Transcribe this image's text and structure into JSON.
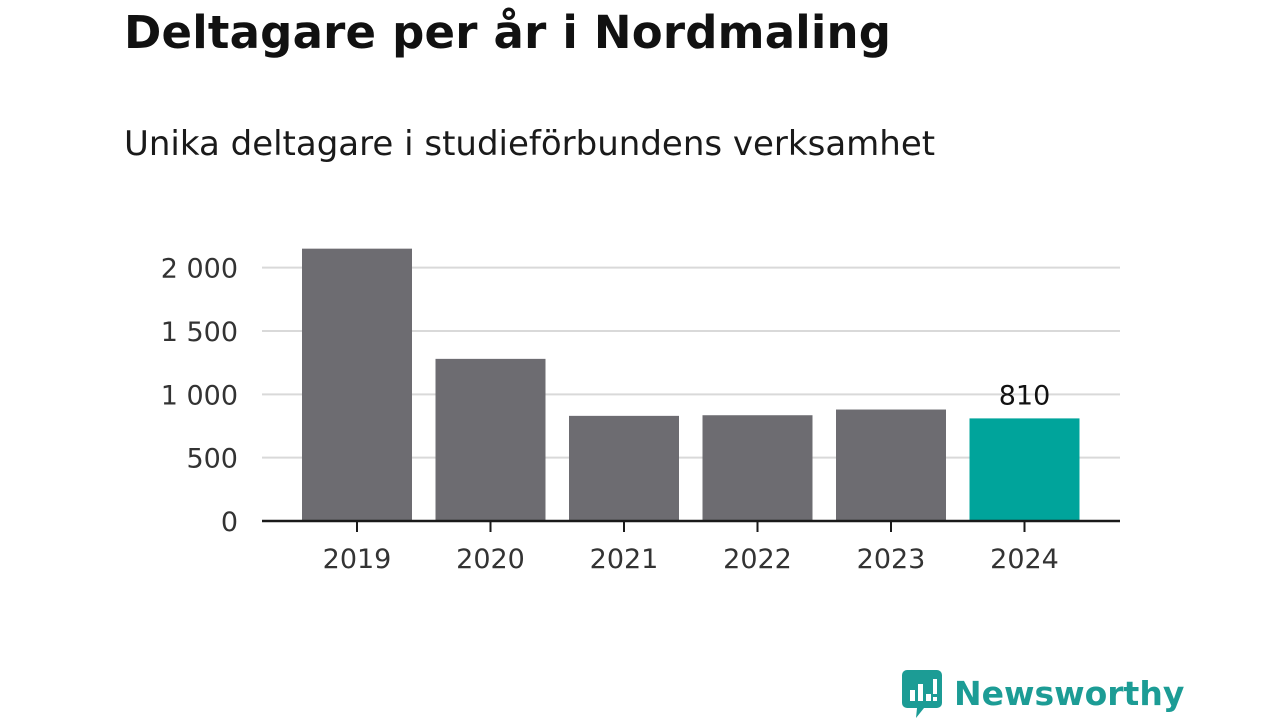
{
  "chart_data": {
    "type": "bar",
    "title": "Deltagare per år i Nordmaling",
    "subtitle": "Unika deltagare i studieförbundens verksamhet",
    "categories": [
      "2019",
      "2020",
      "2021",
      "2022",
      "2023",
      "2024"
    ],
    "values": [
      2150,
      1280,
      830,
      835,
      880,
      810
    ],
    "highlight_index": 5,
    "data_labels": [
      {
        "index": 5,
        "text": "810"
      }
    ],
    "yticks": [
      0,
      500,
      1000,
      1500,
      2000
    ],
    "ytick_labels": [
      "0",
      "500",
      "1 000",
      "1 500",
      "2 000"
    ],
    "ylim": [
      0,
      2200
    ],
    "grid": true,
    "colors": {
      "bar": "#6d6c71",
      "highlight": "#00a49b",
      "grid": "#d9d9d9",
      "axis": "#1a1a1a"
    }
  },
  "brand": {
    "name": "Newsworthy",
    "icon": "newsworthy-logo-icon",
    "color": "#1c9c95"
  }
}
